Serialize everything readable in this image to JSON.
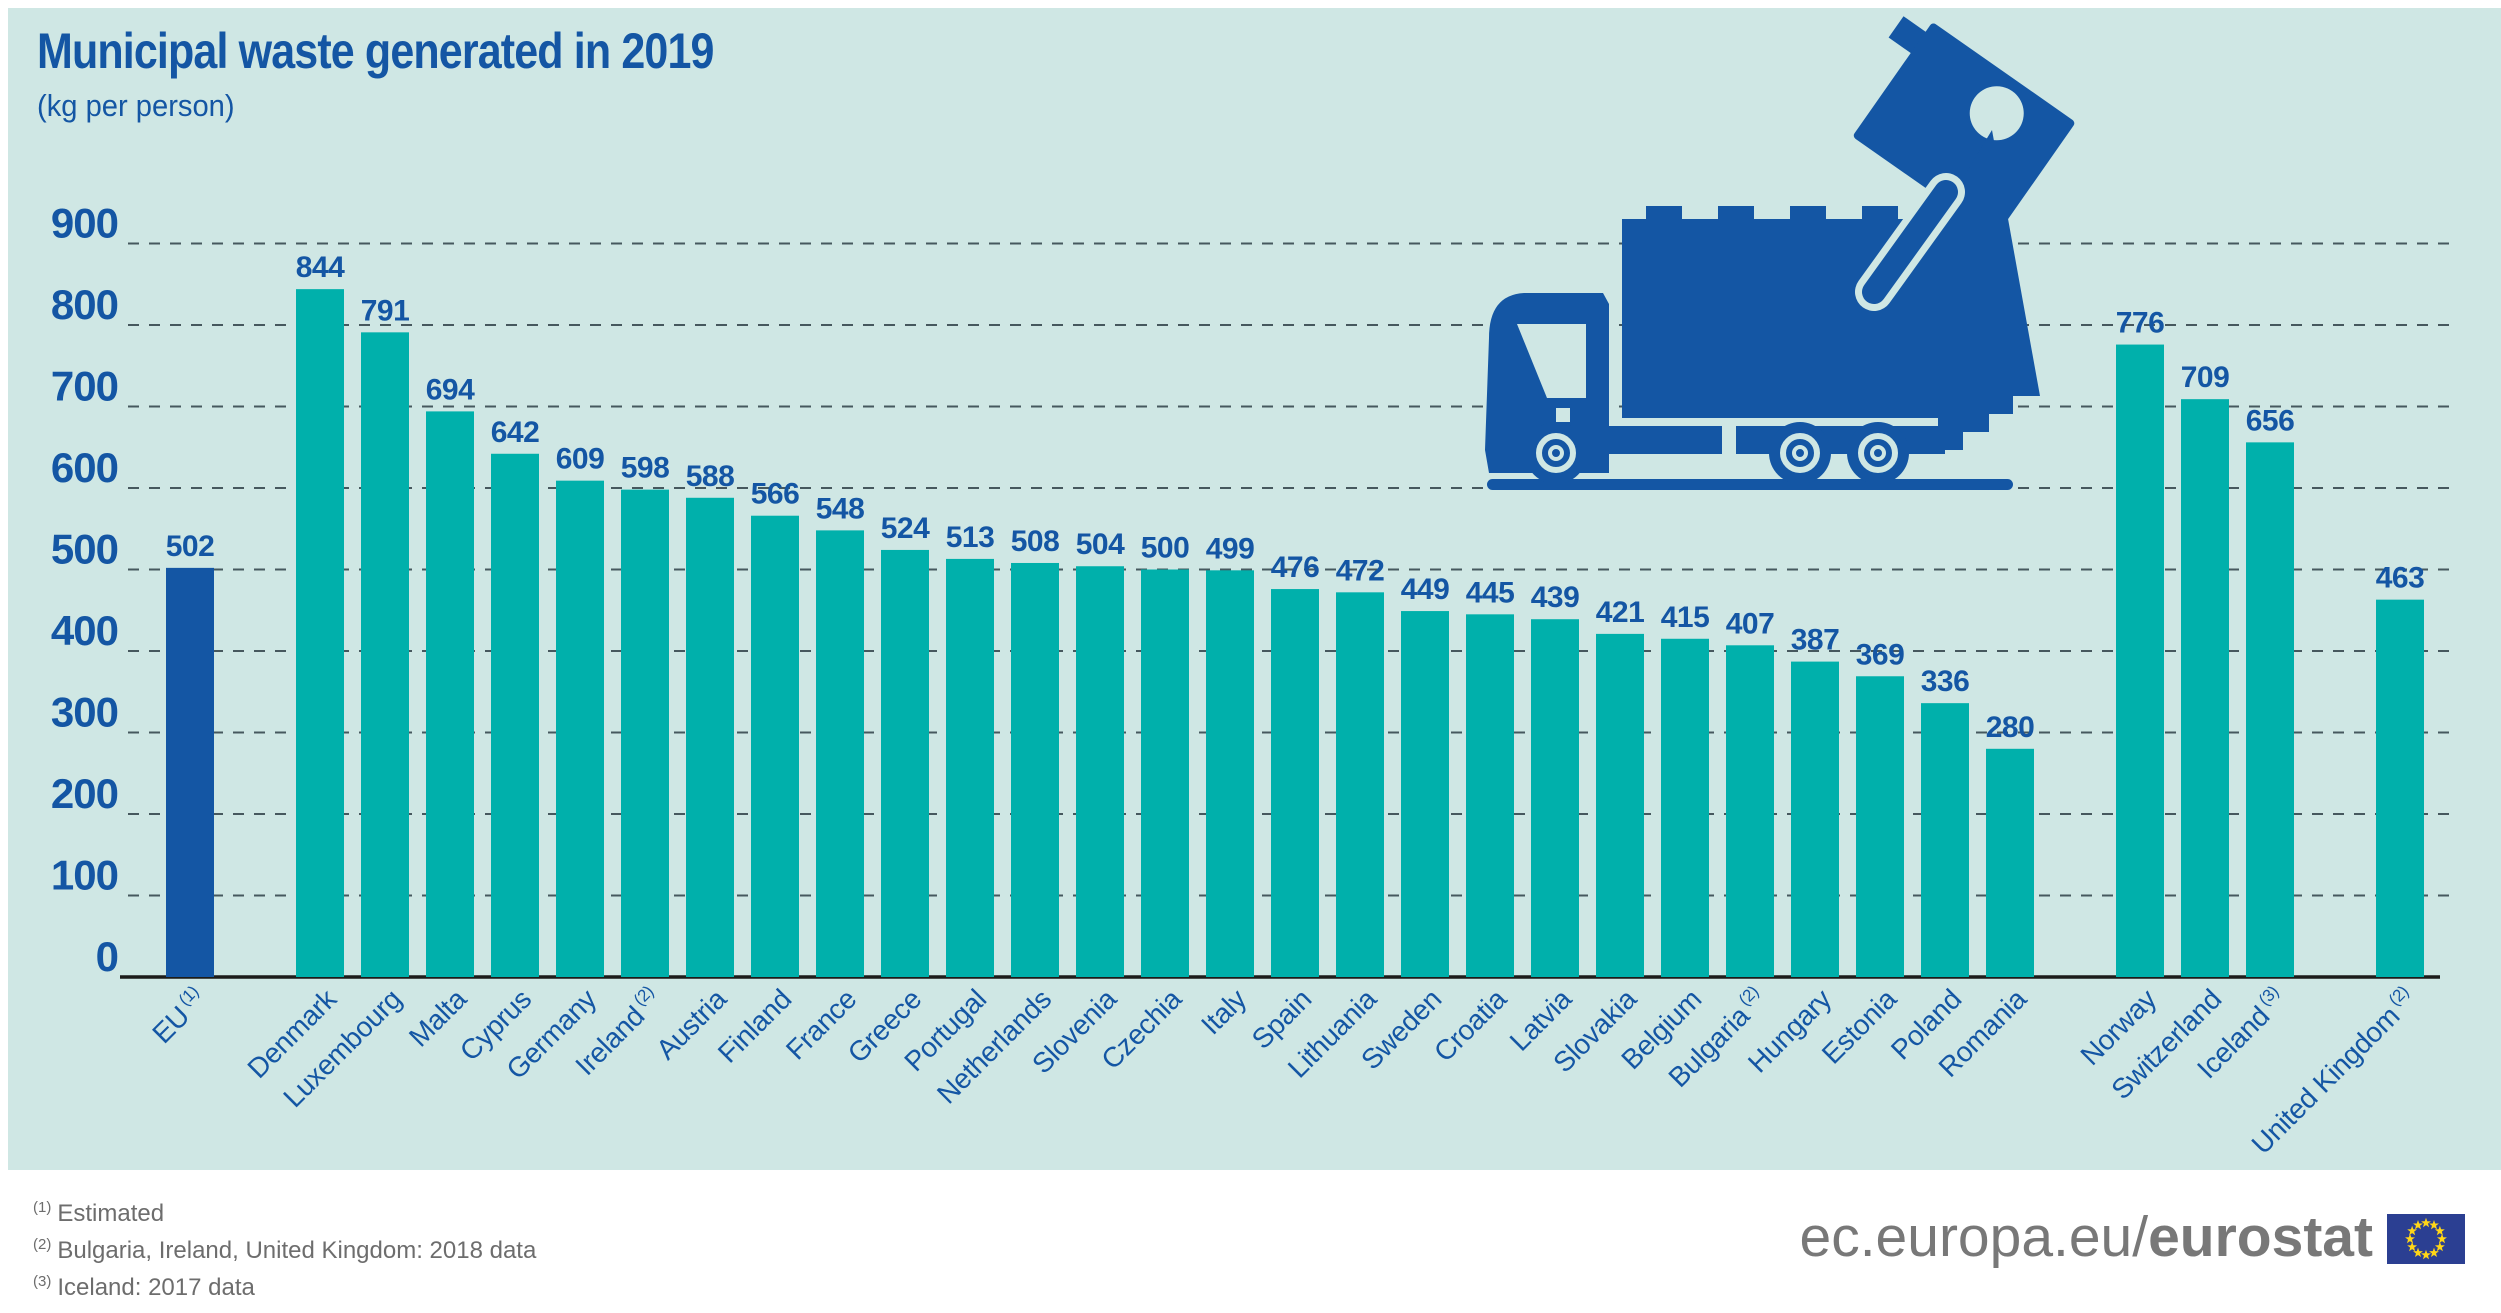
{
  "title": "Municipal waste generated in 2019",
  "subtitle": "(kg per person)",
  "chart_data": {
    "type": "bar",
    "title": "Municipal waste generated in 2019",
    "unit": "kg per person",
    "ylim": [
      0,
      900
    ],
    "yticks": [
      0,
      100,
      200,
      300,
      400,
      500,
      600,
      700,
      800,
      900
    ],
    "grid": "horizontal-dashed",
    "legend": "none",
    "bars": [
      {
        "label": "EU",
        "sup": "1",
        "value": 502,
        "color": "eu"
      },
      {
        "label": "Denmark",
        "value": 844,
        "gap_before": true
      },
      {
        "label": "Luxembourg",
        "value": 791
      },
      {
        "label": "Malta",
        "value": 694
      },
      {
        "label": "Cyprus",
        "value": 642
      },
      {
        "label": "Germany",
        "value": 609
      },
      {
        "label": "Ireland",
        "sup": "2",
        "value": 598
      },
      {
        "label": "Austria",
        "value": 588
      },
      {
        "label": "Finland",
        "value": 566
      },
      {
        "label": "France",
        "value": 548
      },
      {
        "label": "Greece",
        "value": 524
      },
      {
        "label": "Portugal",
        "value": 513
      },
      {
        "label": "Netherlands",
        "value": 508
      },
      {
        "label": "Slovenia",
        "value": 504
      },
      {
        "label": "Czechia",
        "value": 500
      },
      {
        "label": "Italy",
        "value": 499
      },
      {
        "label": "Spain",
        "value": 476
      },
      {
        "label": "Lithuania",
        "value": 472
      },
      {
        "label": "Sweden",
        "value": 449
      },
      {
        "label": "Croatia",
        "value": 445
      },
      {
        "label": "Latvia",
        "value": 439
      },
      {
        "label": "Slovakia",
        "value": 421
      },
      {
        "label": "Belgium",
        "value": 415
      },
      {
        "label": "Bulgaria",
        "sup": "2",
        "value": 407
      },
      {
        "label": "Hungary",
        "value": 387
      },
      {
        "label": "Estonia",
        "value": 369
      },
      {
        "label": "Poland",
        "value": 336
      },
      {
        "label": "Romania",
        "value": 280
      },
      {
        "label": "Norway",
        "value": 776,
        "gap_before": true
      },
      {
        "label": "Switzerland",
        "value": 709
      },
      {
        "label": "Iceland",
        "sup": "3",
        "value": 656
      },
      {
        "label": "United Kingdom",
        "sup": "2",
        "value": 463,
        "gap_before": true
      }
    ]
  },
  "footnotes": [
    {
      "sup": "(1)",
      "text": "Estimated"
    },
    {
      "sup": "(2)",
      "text": "Bulgaria, Ireland, United Kingdom: 2018 data"
    },
    {
      "sup": "(3)",
      "text": "Iceland: 2017 data"
    }
  ],
  "branding": {
    "url_regular": "ec.europa.eu/",
    "url_bold": "eurostat",
    "flag": "eu-flag"
  },
  "colors": {
    "panel_bg": "#cfe7e4",
    "blue": "#1456a4",
    "teal": "#00b0ab",
    "grid": "#46585e",
    "axis": "#1c1c1a",
    "footnote_gray": "#6d6d6d",
    "logo_gray": "#787878",
    "flag_blue": "#2b3f92",
    "star_yellow": "#ffd617"
  }
}
